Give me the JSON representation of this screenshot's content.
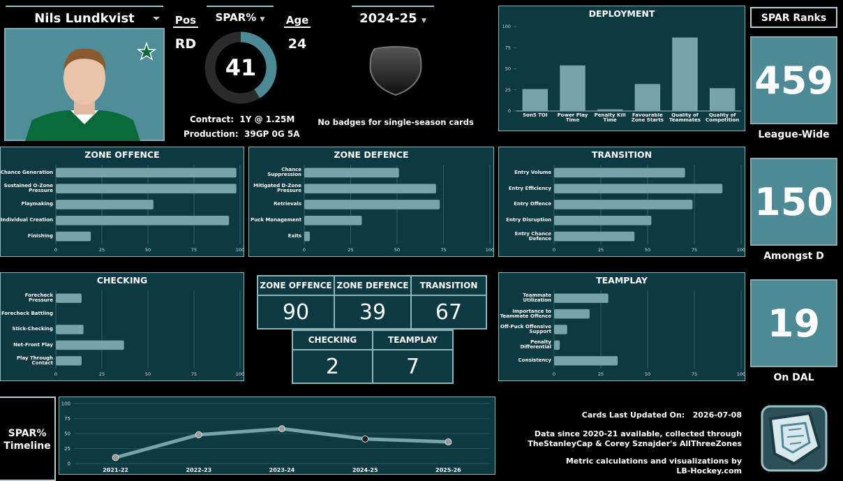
{
  "player": {
    "name": "Nils Lundkvist",
    "pos_label": "Pos",
    "pos": "RD",
    "spar_label": "SPAR%",
    "spar": 41,
    "age_label": "Age",
    "age": 24,
    "contract_label": "Contract:",
    "contract": "1Y @ 1.25M",
    "production_label": "Production:",
    "production": "39GP 0G 5A"
  },
  "season": "2024-25",
  "badges": "No badges for single-season cards",
  "ranks": {
    "title": "SPAR Ranks",
    "items": [
      {
        "value": 459,
        "label": "League-Wide"
      },
      {
        "value": 150,
        "label": "Amongst D"
      },
      {
        "value": 19,
        "label": "On DAL"
      }
    ]
  },
  "scores": {
    "row1": [
      {
        "label": "ZONE OFFENCE",
        "value": 90
      },
      {
        "label": "ZONE DEFENCE",
        "value": 39
      },
      {
        "label": "TRANSITION",
        "value": 67
      }
    ],
    "row2": [
      {
        "label": "CHECKING",
        "value": 2
      },
      {
        "label": "TEAMPLAY",
        "value": 7
      }
    ]
  },
  "timeline_label": "SPAR% Timeline",
  "footer": {
    "updated_label": "Cards Last Updated On:",
    "updated": "2026-07-08",
    "lines": [
      "Data since 2020-21 available, collected through",
      "TheStanleyCap & Corey Sznajder's AllThreeZones",
      "Metric calculations and visualizations by",
      "LB-Hockey.com"
    ]
  },
  "chart_data": [
    {
      "type": "bar",
      "title": "DEPLOYMENT",
      "categories": [
        "5on5 TOI",
        "Power Play Time",
        "Penalty Kill Time",
        "Favourable Zone Starts",
        "Quality of Teammates",
        "Quality of Competition"
      ],
      "values": [
        26,
        54,
        2,
        32,
        87,
        27
      ],
      "color": "#78a3ab",
      "ylim": [
        0,
        100
      ],
      "yticks": [
        0,
        25,
        50,
        75,
        100
      ],
      "grid": false
    },
    {
      "type": "barh",
      "title": "ZONE OFFENCE",
      "categories": [
        "Chance Generation",
        "Sustained O-Zone Pressure",
        "Playmaking",
        "Individual Creation",
        "Finishing"
      ],
      "values": [
        98,
        98,
        53,
        94,
        19
      ],
      "color": "#78a3ab",
      "xlim": [
        0,
        100
      ],
      "xticks": [
        0,
        25,
        50,
        75,
        100
      ],
      "grid": true
    },
    {
      "type": "barh",
      "title": "ZONE DEFENCE",
      "categories": [
        "Chance Suppression",
        "Mitigated D-Zone Pressure",
        "Retrievals",
        "Puck Management",
        "Exits"
      ],
      "values": [
        51,
        71,
        73,
        31,
        3
      ],
      "color": "#78a3ab",
      "xlim": [
        0,
        100
      ],
      "xticks": [
        0,
        25,
        50,
        75,
        100
      ],
      "grid": true
    },
    {
      "type": "barh",
      "title": "TRANSITION",
      "categories": [
        "Entry Volume",
        "Entry Efficiency",
        "Entry Offence",
        "Entry Disruption",
        "Entry Chance Defence"
      ],
      "values": [
        70,
        90,
        74,
        52,
        43
      ],
      "color": "#78a3ab",
      "xlim": [
        0,
        100
      ],
      "xticks": [
        0,
        25,
        50,
        75,
        100
      ],
      "grid": true
    },
    {
      "type": "barh",
      "title": "CHECKING",
      "categories": [
        "Forecheck Pressure",
        "Forecheck Battling",
        "Stick-Checking",
        "Net-Front Play",
        "Play Through Contact"
      ],
      "values": [
        14,
        0,
        15,
        37,
        14
      ],
      "color": "#78a3ab",
      "xlim": [
        0,
        100
      ],
      "xticks": [
        0,
        25,
        50,
        75,
        100
      ],
      "grid": true
    },
    {
      "type": "barh",
      "title": "TEAMPLAY",
      "categories": [
        "Teammate Utilization",
        "Importance to Teammate Offence",
        "Off-Puck Offensive Support",
        "Penalty Differential",
        "Consistency"
      ],
      "values": [
        29,
        19,
        7,
        3,
        34
      ],
      "color": "#78a3ab",
      "xlim": [
        0,
        100
      ],
      "xticks": [
        0,
        25,
        50,
        75,
        100
      ],
      "grid": true
    },
    {
      "type": "line",
      "categories": [
        "2021-22",
        "2022-23",
        "2023-24",
        "2024-25",
        "2025-26"
      ],
      "values": [
        10,
        48,
        58,
        41,
        36
      ],
      "color": "#78a3ab",
      "ylim": [
        0,
        100
      ],
      "yticks": [
        0,
        25,
        50,
        75,
        100
      ],
      "grid": true
    }
  ]
}
